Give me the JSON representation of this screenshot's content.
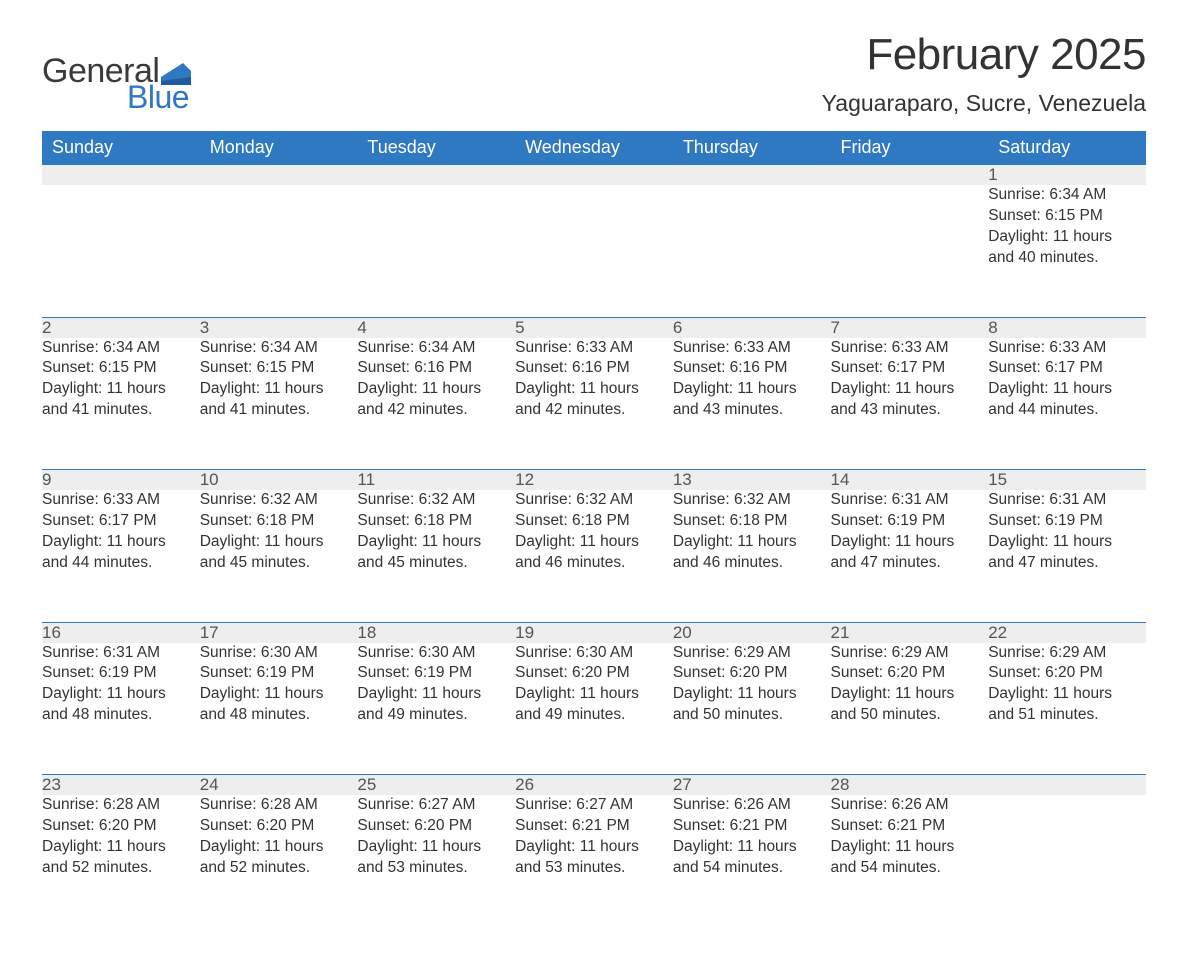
{
  "brand": {
    "name_part1": "General",
    "name_part2": "Blue",
    "text_color": "#3a3a3a",
    "accent_color": "#2f78c2"
  },
  "header": {
    "title": "February 2025",
    "location": "Yaguaraparo, Sucre, Venezuela"
  },
  "colors": {
    "header_bg": "#2f78c2",
    "header_text": "#ffffff",
    "daynum_bg": "#eeeeee",
    "row_divider": "#2f78c2",
    "body_text": "#333333",
    "page_bg": "#ffffff"
  },
  "typography": {
    "title_fontsize": 44,
    "location_fontsize": 23,
    "weekday_fontsize": 18,
    "daynum_fontsize": 17,
    "detail_fontsize": 15.5,
    "font_family": "Segoe UI"
  },
  "weekdays": [
    "Sunday",
    "Monday",
    "Tuesday",
    "Wednesday",
    "Thursday",
    "Friday",
    "Saturday"
  ],
  "weeks": [
    [
      null,
      null,
      null,
      null,
      null,
      null,
      {
        "day": "1",
        "sunrise": "Sunrise: 6:34 AM",
        "sunset": "Sunset: 6:15 PM",
        "daylight1": "Daylight: 11 hours",
        "daylight2": "and 40 minutes."
      }
    ],
    [
      {
        "day": "2",
        "sunrise": "Sunrise: 6:34 AM",
        "sunset": "Sunset: 6:15 PM",
        "daylight1": "Daylight: 11 hours",
        "daylight2": "and 41 minutes."
      },
      {
        "day": "3",
        "sunrise": "Sunrise: 6:34 AM",
        "sunset": "Sunset: 6:15 PM",
        "daylight1": "Daylight: 11 hours",
        "daylight2": "and 41 minutes."
      },
      {
        "day": "4",
        "sunrise": "Sunrise: 6:34 AM",
        "sunset": "Sunset: 6:16 PM",
        "daylight1": "Daylight: 11 hours",
        "daylight2": "and 42 minutes."
      },
      {
        "day": "5",
        "sunrise": "Sunrise: 6:33 AM",
        "sunset": "Sunset: 6:16 PM",
        "daylight1": "Daylight: 11 hours",
        "daylight2": "and 42 minutes."
      },
      {
        "day": "6",
        "sunrise": "Sunrise: 6:33 AM",
        "sunset": "Sunset: 6:16 PM",
        "daylight1": "Daylight: 11 hours",
        "daylight2": "and 43 minutes."
      },
      {
        "day": "7",
        "sunrise": "Sunrise: 6:33 AM",
        "sunset": "Sunset: 6:17 PM",
        "daylight1": "Daylight: 11 hours",
        "daylight2": "and 43 minutes."
      },
      {
        "day": "8",
        "sunrise": "Sunrise: 6:33 AM",
        "sunset": "Sunset: 6:17 PM",
        "daylight1": "Daylight: 11 hours",
        "daylight2": "and 44 minutes."
      }
    ],
    [
      {
        "day": "9",
        "sunrise": "Sunrise: 6:33 AM",
        "sunset": "Sunset: 6:17 PM",
        "daylight1": "Daylight: 11 hours",
        "daylight2": "and 44 minutes."
      },
      {
        "day": "10",
        "sunrise": "Sunrise: 6:32 AM",
        "sunset": "Sunset: 6:18 PM",
        "daylight1": "Daylight: 11 hours",
        "daylight2": "and 45 minutes."
      },
      {
        "day": "11",
        "sunrise": "Sunrise: 6:32 AM",
        "sunset": "Sunset: 6:18 PM",
        "daylight1": "Daylight: 11 hours",
        "daylight2": "and 45 minutes."
      },
      {
        "day": "12",
        "sunrise": "Sunrise: 6:32 AM",
        "sunset": "Sunset: 6:18 PM",
        "daylight1": "Daylight: 11 hours",
        "daylight2": "and 46 minutes."
      },
      {
        "day": "13",
        "sunrise": "Sunrise: 6:32 AM",
        "sunset": "Sunset: 6:18 PM",
        "daylight1": "Daylight: 11 hours",
        "daylight2": "and 46 minutes."
      },
      {
        "day": "14",
        "sunrise": "Sunrise: 6:31 AM",
        "sunset": "Sunset: 6:19 PM",
        "daylight1": "Daylight: 11 hours",
        "daylight2": "and 47 minutes."
      },
      {
        "day": "15",
        "sunrise": "Sunrise: 6:31 AM",
        "sunset": "Sunset: 6:19 PM",
        "daylight1": "Daylight: 11 hours",
        "daylight2": "and 47 minutes."
      }
    ],
    [
      {
        "day": "16",
        "sunrise": "Sunrise: 6:31 AM",
        "sunset": "Sunset: 6:19 PM",
        "daylight1": "Daylight: 11 hours",
        "daylight2": "and 48 minutes."
      },
      {
        "day": "17",
        "sunrise": "Sunrise: 6:30 AM",
        "sunset": "Sunset: 6:19 PM",
        "daylight1": "Daylight: 11 hours",
        "daylight2": "and 48 minutes."
      },
      {
        "day": "18",
        "sunrise": "Sunrise: 6:30 AM",
        "sunset": "Sunset: 6:19 PM",
        "daylight1": "Daylight: 11 hours",
        "daylight2": "and 49 minutes."
      },
      {
        "day": "19",
        "sunrise": "Sunrise: 6:30 AM",
        "sunset": "Sunset: 6:20 PM",
        "daylight1": "Daylight: 11 hours",
        "daylight2": "and 49 minutes."
      },
      {
        "day": "20",
        "sunrise": "Sunrise: 6:29 AM",
        "sunset": "Sunset: 6:20 PM",
        "daylight1": "Daylight: 11 hours",
        "daylight2": "and 50 minutes."
      },
      {
        "day": "21",
        "sunrise": "Sunrise: 6:29 AM",
        "sunset": "Sunset: 6:20 PM",
        "daylight1": "Daylight: 11 hours",
        "daylight2": "and 50 minutes."
      },
      {
        "day": "22",
        "sunrise": "Sunrise: 6:29 AM",
        "sunset": "Sunset: 6:20 PM",
        "daylight1": "Daylight: 11 hours",
        "daylight2": "and 51 minutes."
      }
    ],
    [
      {
        "day": "23",
        "sunrise": "Sunrise: 6:28 AM",
        "sunset": "Sunset: 6:20 PM",
        "daylight1": "Daylight: 11 hours",
        "daylight2": "and 52 minutes."
      },
      {
        "day": "24",
        "sunrise": "Sunrise: 6:28 AM",
        "sunset": "Sunset: 6:20 PM",
        "daylight1": "Daylight: 11 hours",
        "daylight2": "and 52 minutes."
      },
      {
        "day": "25",
        "sunrise": "Sunrise: 6:27 AM",
        "sunset": "Sunset: 6:20 PM",
        "daylight1": "Daylight: 11 hours",
        "daylight2": "and 53 minutes."
      },
      {
        "day": "26",
        "sunrise": "Sunrise: 6:27 AM",
        "sunset": "Sunset: 6:21 PM",
        "daylight1": "Daylight: 11 hours",
        "daylight2": "and 53 minutes."
      },
      {
        "day": "27",
        "sunrise": "Sunrise: 6:26 AM",
        "sunset": "Sunset: 6:21 PM",
        "daylight1": "Daylight: 11 hours",
        "daylight2": "and 54 minutes."
      },
      {
        "day": "28",
        "sunrise": "Sunrise: 6:26 AM",
        "sunset": "Sunset: 6:21 PM",
        "daylight1": "Daylight: 11 hours",
        "daylight2": "and 54 minutes."
      },
      null
    ]
  ]
}
